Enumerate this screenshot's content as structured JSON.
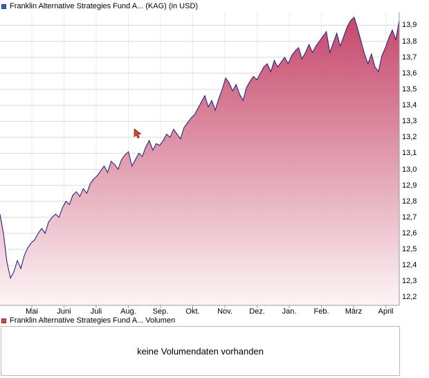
{
  "header": {
    "title": "Franklin Alternative Strategies Fund A... (KAG) (in USD)",
    "marker_color": "#3a62b4",
    "marker_border": "#1e3c78"
  },
  "volume_legend": {
    "label": "Franklin Alternative Strategies Fund A... Volumen",
    "marker_color": "#d05050",
    "marker_border": "#8b1f1f"
  },
  "volume_panel": {
    "message": "keine Volumendaten vorhanden"
  },
  "icons": {
    "price_series_marker": "square",
    "volume_series_marker": "square",
    "cursor": "arrow-pointer"
  },
  "chart_data": {
    "type": "area",
    "title": "Franklin Alternative Strategies Fund A... (KAG) (in USD)",
    "x_tick_labels": [
      "Mai",
      "Juni",
      "Juli",
      "Aug.",
      "Sep.",
      "Okt.",
      "Nov.",
      "Dez.",
      "Jan.",
      "Feb.",
      "März",
      "April"
    ],
    "y_ticks": [
      12.2,
      12.3,
      12.4,
      12.5,
      12.6,
      12.7,
      12.8,
      12.9,
      13.0,
      13.1,
      13.2,
      13.3,
      13.4,
      13.5,
      13.6,
      13.7,
      13.8,
      13.9
    ],
    "y_tick_labels": [
      "12,2",
      "12,3",
      "12,4",
      "12,5",
      "12,6",
      "12,7",
      "12,8",
      "12,9",
      "13,0",
      "13,1",
      "13,2",
      "13,3",
      "13,4",
      "13,5",
      "13,6",
      "13,7",
      "13,8",
      "13,9"
    ],
    "ylim": [
      12.15,
      13.98
    ],
    "grid": true,
    "legend_position": "top-left",
    "series": [
      {
        "name": "Franklin Alternative Strategies Fund A... (KAG) in USD",
        "values": [
          12.72,
          12.6,
          12.42,
          12.32,
          12.36,
          12.43,
          12.38,
          12.46,
          12.51,
          12.54,
          12.56,
          12.6,
          12.63,
          12.6,
          12.67,
          12.7,
          12.72,
          12.7,
          12.76,
          12.8,
          12.78,
          12.84,
          12.86,
          12.83,
          12.88,
          12.85,
          12.91,
          12.94,
          12.96,
          12.99,
          13.02,
          12.98,
          13.05,
          13.03,
          13.0,
          13.06,
          13.09,
          13.11,
          13.02,
          13.06,
          13.1,
          13.08,
          13.14,
          13.18,
          13.12,
          13.16,
          13.15,
          13.18,
          13.22,
          13.2,
          13.25,
          13.22,
          13.19,
          13.26,
          13.29,
          13.32,
          13.34,
          13.38,
          13.42,
          13.46,
          13.39,
          13.43,
          13.37,
          13.44,
          13.5,
          13.57,
          13.54,
          13.49,
          13.53,
          13.47,
          13.43,
          13.51,
          13.55,
          13.58,
          13.56,
          13.6,
          13.64,
          13.66,
          13.61,
          13.68,
          13.64,
          13.67,
          13.7,
          13.66,
          13.71,
          13.74,
          13.76,
          13.69,
          13.73,
          13.78,
          13.73,
          13.77,
          13.8,
          13.83,
          13.86,
          13.73,
          13.79,
          13.85,
          13.77,
          13.83,
          13.89,
          13.93,
          13.95,
          13.88,
          13.8,
          13.72,
          13.66,
          13.72,
          13.64,
          13.61,
          13.71,
          13.76,
          13.82,
          13.87,
          13.81,
          13.93
        ]
      }
    ],
    "colors": {
      "line": "#26267e",
      "fill_top": "#c23a60",
      "fill_bottom": "#fdf4f6",
      "grid": "#d9d9d9",
      "grid_vertical": "#ececec",
      "axis": "#9a9a9a"
    }
  }
}
